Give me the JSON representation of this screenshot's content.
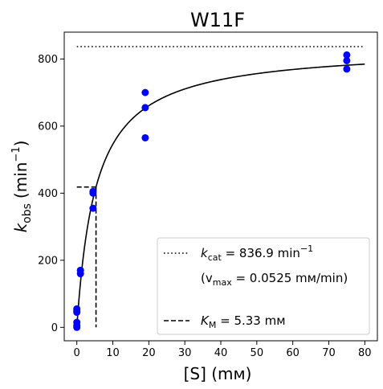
{
  "chart_data": {
    "type": "scatter",
    "title": "W11F",
    "xlabel": "[S] (mм)",
    "ylabel_main": "k",
    "ylabel_sub": "obs",
    "ylabel_unit_prefix": "(min",
    "ylabel_unit_sup": "−1",
    "ylabel_unit_suffix": ")",
    "xlim": [
      -3.5,
      83.5
    ],
    "ylim": [
      -40,
      880
    ],
    "x_ticks": [
      0,
      10,
      20,
      30,
      40,
      50,
      60,
      70,
      80
    ],
    "x_tick_labels": [
      "0",
      "10",
      "20",
      "30",
      "40",
      "50",
      "60",
      "70",
      "80"
    ],
    "y_ticks": [
      0,
      200,
      400,
      600,
      800
    ],
    "y_tick_labels": [
      "0",
      "200",
      "400",
      "600",
      "800"
    ],
    "grid": false,
    "legend_position": "bottom-right",
    "series": [
      {
        "kind": "points",
        "color": "#0000ff",
        "x": [
          0,
          0,
          0,
          0,
          0,
          0,
          1,
          1,
          4.5,
          4.5,
          4.5,
          19,
          19,
          19,
          75,
          75,
          75
        ],
        "y": [
          0,
          5,
          15,
          45,
          50,
          55,
          160,
          170,
          355,
          400,
          405,
          565,
          655,
          700,
          770,
          795,
          812
        ]
      },
      {
        "kind": "fit_curve",
        "color": "#000000",
        "vmax": 836.9,
        "km": 5.33,
        "x_range": [
          0,
          80
        ]
      },
      {
        "kind": "kcat_line",
        "color": "#000000",
        "y": 836.9,
        "x_range": [
          0,
          80
        ]
      },
      {
        "kind": "km_marker",
        "color": "#000000",
        "x": 5.33,
        "y": 418.45,
        "x_start": 0
      }
    ],
    "legend": {
      "line1_main": "k",
      "line1_sub": "cat",
      "line1_rest": " = 836.9 min",
      "line1_sup": "−1",
      "line2": "(v",
      "line2_sub": "max",
      "line2_rest": " = 0.0525 mм/min)",
      "line3_main": "K",
      "line3_sub": "M",
      "line3_rest": " = 5.33 mм"
    }
  }
}
